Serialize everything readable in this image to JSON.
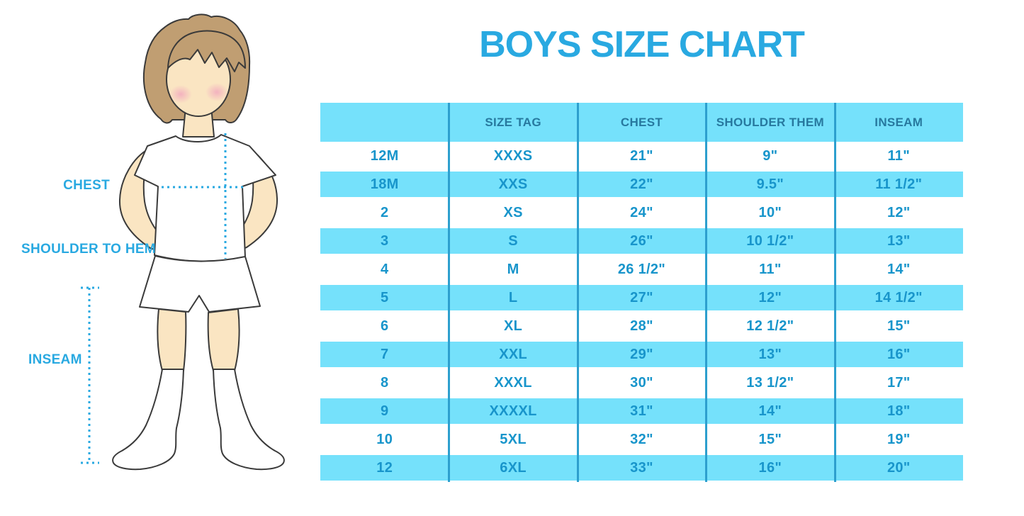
{
  "title": "BOYS SIZE CHART",
  "colors": {
    "accent": "#29A9E1",
    "fill": "#75E1FB",
    "grid": "#2D9FCE",
    "header_text": "#27799F",
    "cell_text": "#1895CB",
    "hair": "#C09E72",
    "skin": "#FAE5C2",
    "blush": "#F2A9BE"
  },
  "figure": {
    "labels": {
      "chest": "CHEST",
      "shoulder_to_hem": "SHOULDER TO HEM",
      "inseam": "INSEAM"
    },
    "illustration": "boy-with-measurement-lines"
  },
  "chart_data": {
    "type": "table",
    "title": "BOYS SIZE CHART",
    "columns": [
      "",
      "SIZE TAG",
      "CHEST",
      "SHOULDER THEM",
      "INSEAM"
    ],
    "rows": [
      [
        "12M",
        "XXXS",
        "21\"",
        "9\"",
        "11\""
      ],
      [
        "18M",
        "XXS",
        "22\"",
        "9.5\"",
        "11 1/2\""
      ],
      [
        "2",
        "XS",
        "24\"",
        "10\"",
        "12\""
      ],
      [
        "3",
        "S",
        "26\"",
        "10 1/2\"",
        "13\""
      ],
      [
        "4",
        "M",
        "26 1/2\"",
        "11\"",
        "14\""
      ],
      [
        "5",
        "L",
        "27\"",
        "12\"",
        "14 1/2\""
      ],
      [
        "6",
        "XL",
        "28\"",
        "12 1/2\"",
        "15\""
      ],
      [
        "7",
        "XXL",
        "29\"",
        "13\"",
        "16\""
      ],
      [
        "8",
        "XXXL",
        "30\"",
        "13 1/2\"",
        "17\""
      ],
      [
        "9",
        "XXXXL",
        "31\"",
        "14\"",
        "18\""
      ],
      [
        "10",
        "5XL",
        "32\"",
        "15\"",
        "19\""
      ],
      [
        "12",
        "6XL",
        "33\"",
        "16\"",
        "20\""
      ]
    ],
    "layout": {
      "row_striping": "white / light-blue alternating",
      "grid": "vertical separators only",
      "legend": "none"
    }
  }
}
